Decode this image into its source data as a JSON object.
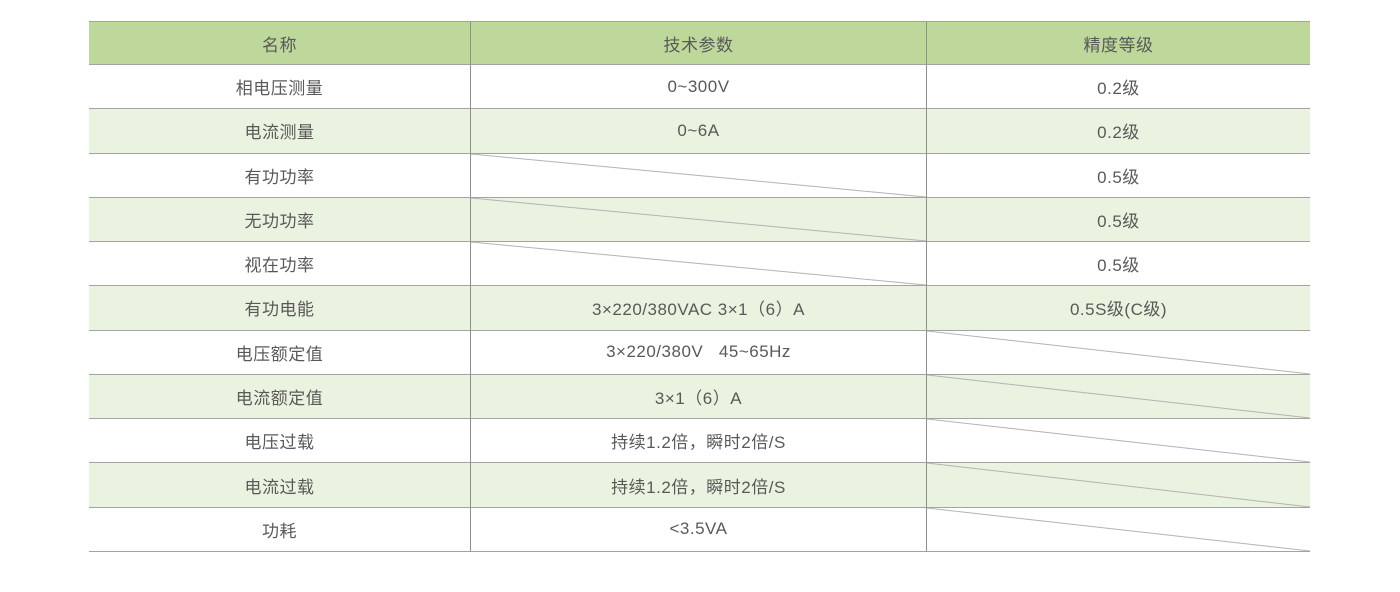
{
  "colors": {
    "header_green": "#bed89b",
    "row_green": "#eaf3df",
    "text_grey": "#595959",
    "grid_line_grey": "#a3a3a3",
    "column_divider_grey": "#8f8f8f",
    "diagonal_line_grey": "#b3b3b3"
  },
  "table": {
    "headers": [
      "名称",
      "技术参数",
      "精度等级"
    ],
    "rows": [
      {
        "name": "相电压测量",
        "param": "0~300V",
        "grade": "0.2级"
      },
      {
        "name": "电流测量",
        "param": "0~6A",
        "grade": "0.2级"
      },
      {
        "name": "有功功率",
        "param": null,
        "grade": "0.5级"
      },
      {
        "name": "无功功率",
        "param": null,
        "grade": "0.5级"
      },
      {
        "name": "视在功率",
        "param": null,
        "grade": "0.5级"
      },
      {
        "name": "有功电能",
        "param": "3×220/380VAC 3×1（6）A",
        "grade": "0.5S级(C级)"
      },
      {
        "name": "电压额定值",
        "param": "3×220/380V   45~65Hz",
        "grade": null
      },
      {
        "name": "电流额定值",
        "param": "3×1（6）A",
        "grade": null
      },
      {
        "name": "电压过载",
        "param": "持续1.2倍，瞬时2倍/S",
        "grade": null
      },
      {
        "name": "电流过载",
        "param": "持续1.2倍，瞬时2倍/S",
        "grade": null
      },
      {
        "name": "功耗",
        "param": "<3.5VA",
        "grade": null
      }
    ]
  }
}
